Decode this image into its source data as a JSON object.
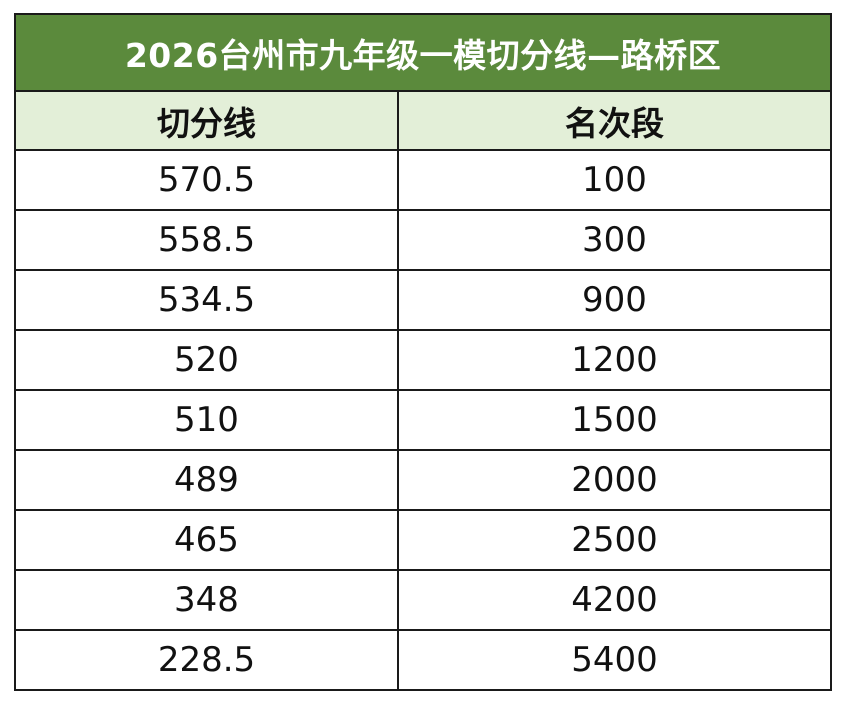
{
  "table": {
    "title": "2026台州市九年级一模切分线—路桥区",
    "headers": [
      "切分线",
      "名次段"
    ],
    "rows": [
      [
        "570.5",
        "100"
      ],
      [
        "558.5",
        "300"
      ],
      [
        "534.5",
        "900"
      ],
      [
        "520",
        "1200"
      ],
      [
        "510",
        "1500"
      ],
      [
        "489",
        "2000"
      ],
      [
        "465",
        "2500"
      ],
      [
        "348",
        "4200"
      ],
      [
        "228.5",
        "5400"
      ]
    ]
  },
  "colors": {
    "title_bg": "#5b8a3c",
    "header_bg": "#e3efd8",
    "border": "#1a1a1a"
  }
}
